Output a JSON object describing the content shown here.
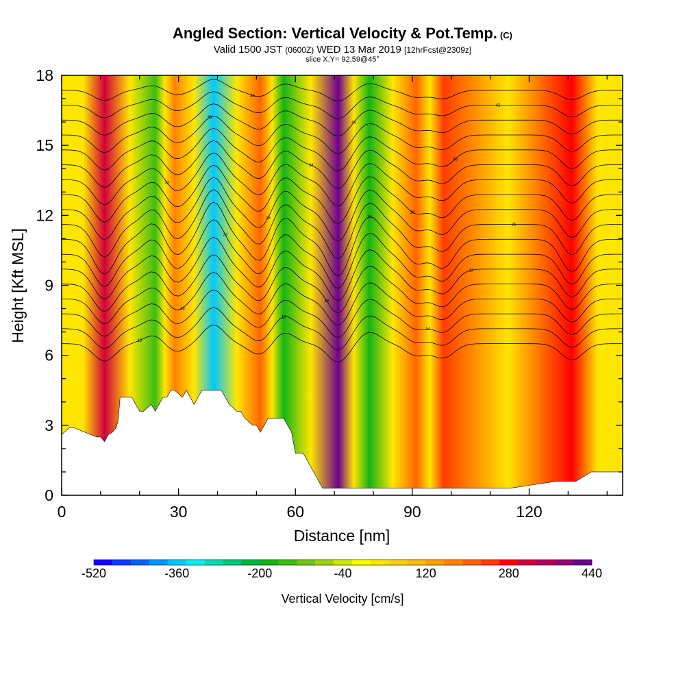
{
  "header": {
    "title": "Angled Section: Vertical Velocity & Pot.Temp.",
    "title_unit": "(C)",
    "valid_prefix": "Valid 1500 JST",
    "valid_utc": "(0600Z)",
    "valid_suffix": "WED 13 Mar 2019",
    "forecast_info": "[12hrFcst@2309z]",
    "slice": "slice X,Y= 92,59@45°"
  },
  "chart_data": {
    "type": "heatmap",
    "title": "Angled Section: Vertical Velocity & Pot.Temp.",
    "xlabel": "Distance [nm]",
    "ylabel": "Height [Kft MSL]",
    "xlim": [
      0,
      144
    ],
    "ylim": [
      0,
      18
    ],
    "xticks": [
      0,
      30,
      60,
      90,
      120
    ],
    "yticks": [
      0,
      3,
      6,
      9,
      12,
      15,
      18
    ],
    "colorbar": {
      "label": "Vertical Velocity [cm/s]",
      "min": -520,
      "max": 440,
      "step": 40,
      "tick_values": [
        -520,
        -360,
        -200,
        -40,
        120,
        280,
        440
      ],
      "colors": [
        "#1400ff",
        "#0a3cff",
        "#0064ff",
        "#0096ff",
        "#00c8ff",
        "#00f0f0",
        "#00dcb4",
        "#00c878",
        "#00b43c",
        "#14b414",
        "#3cbe14",
        "#6ec814",
        "#a0d214",
        "#d2e614",
        "#ffff00",
        "#ffe600",
        "#ffd200",
        "#ffbe00",
        "#ffa000",
        "#ff8200",
        "#ff6400",
        "#ff3c00",
        "#ff0000",
        "#d2003c",
        "#b4005a",
        "#960078",
        "#6e0090"
      ]
    },
    "velocity_features": [
      {
        "distance": 11,
        "peak_cms": 300,
        "sign": "updraft"
      },
      {
        "distance": 24,
        "peak_cms": -160,
        "sign": "downdraft"
      },
      {
        "distance": 29,
        "peak_cms": 160,
        "sign": "updraft"
      },
      {
        "distance": 39,
        "peak_cms": -360,
        "sign": "downdraft"
      },
      {
        "distance": 51,
        "peak_cms": 200,
        "sign": "updraft"
      },
      {
        "distance": 57,
        "peak_cms": -200,
        "sign": "downdraft"
      },
      {
        "distance": 71,
        "peak_cms": 440,
        "sign": "updraft"
      },
      {
        "distance": 79,
        "peak_cms": -200,
        "sign": "downdraft"
      },
      {
        "distance": 91,
        "peak_cms": 200,
        "sign": "updraft"
      },
      {
        "distance": 98,
        "peak_cms": 240,
        "sign": "updraft"
      },
      {
        "distance": 131,
        "peak_cms": 280,
        "sign": "updraft"
      }
    ],
    "terrain": {
      "distance": [
        0,
        2,
        3,
        9,
        10,
        11,
        12,
        13,
        14,
        14.5,
        15,
        18,
        19,
        20,
        21,
        23,
        24,
        25,
        26,
        27,
        28,
        29,
        31,
        32,
        33,
        34,
        35,
        36,
        37,
        38,
        41,
        42,
        43,
        45,
        46,
        47,
        49,
        50,
        51,
        52,
        53,
        54,
        55,
        57,
        58,
        59,
        60,
        61,
        62,
        63,
        64,
        65,
        66,
        67,
        68,
        76,
        95,
        102,
        110,
        115,
        127,
        128,
        132,
        136,
        137,
        144
      ],
      "height_kft": [
        2.6,
        2.9,
        2.9,
        2.5,
        2.5,
        2.3,
        2.6,
        2.7,
        2.9,
        3.2,
        4.2,
        4.2,
        3.9,
        3.6,
        3.6,
        3.9,
        3.6,
        3.9,
        4.2,
        4.2,
        4.5,
        4.5,
        4.2,
        4.5,
        4.2,
        3.9,
        4.2,
        4.5,
        4.5,
        4.5,
        4.5,
        4.2,
        3.9,
        3.6,
        3.6,
        3.3,
        3.0,
        3.0,
        2.7,
        3.0,
        3.3,
        3.3,
        3.3,
        3.3,
        3.0,
        2.7,
        1.8,
        1.8,
        1.8,
        1.5,
        1.2,
        0.9,
        0.6,
        0.3,
        0.3,
        0.3,
        0.3,
        0.3,
        0.3,
        0.3,
        0.6,
        0.6,
        0.6,
        1.0,
        1.0,
        1.0
      ]
    },
    "pot_temp_contours": {
      "unit": "C",
      "sample_labels": [
        "10",
        "12",
        "14",
        "16",
        "18",
        "20",
        "22",
        "24",
        "26",
        "28",
        "30",
        "32",
        "34",
        "36",
        "38",
        "40",
        "42",
        "44"
      ]
    }
  }
}
